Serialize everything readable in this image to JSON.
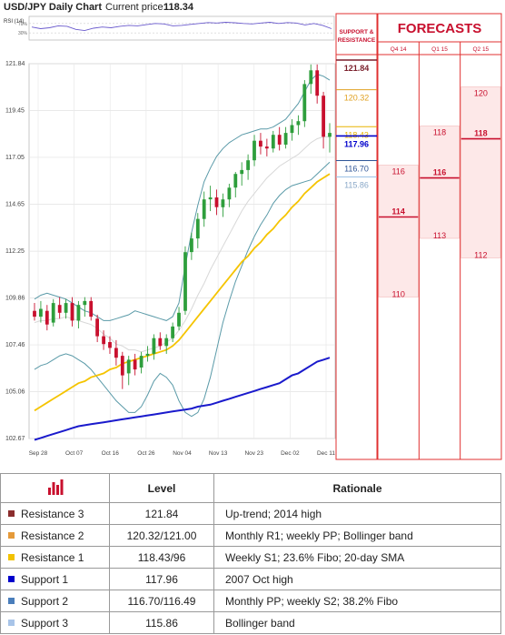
{
  "header": {
    "title": "USD/JPY Daily Chart",
    "price_label": "Current price:",
    "price_value": "118.34"
  },
  "chart_data": [
    {
      "type": "line",
      "title": "RSI (14)",
      "ticks": [
        "70%",
        "30%"
      ],
      "ylim": [
        0,
        100
      ],
      "series": [
        {
          "values": [
            55,
            48,
            52,
            60,
            58,
            45,
            40,
            50,
            55,
            52,
            58,
            62,
            60,
            65,
            70,
            68,
            60,
            62,
            66,
            70,
            74,
            72,
            75,
            73,
            70,
            68,
            72,
            75,
            70,
            74,
            72,
            64,
            70,
            62,
            48
          ]
        }
      ],
      "color": "#6a5acd"
    },
    {
      "type": "candlestick",
      "title": "USD/JPY Daily Chart",
      "ylim": [
        102.67,
        121.84
      ],
      "yticks": [
        "121.84",
        "119.45",
        "117.05",
        "114.65",
        "112.25",
        "109.86",
        "107.46",
        "105.06",
        "102.67"
      ],
      "xticks": [
        "Sep 28",
        "Oct 07",
        "Oct 16",
        "Oct 26",
        "Nov 04",
        "Nov 13",
        "Nov 23",
        "Dec 02",
        "Dec 11"
      ],
      "candles": [
        {
          "o": 109.2,
          "h": 109.6,
          "l": 108.7,
          "c": 108.9
        },
        {
          "o": 108.9,
          "h": 109.7,
          "l": 108.6,
          "c": 109.3
        },
        {
          "o": 109.2,
          "h": 109.5,
          "l": 108.2,
          "c": 108.5
        },
        {
          "o": 108.6,
          "h": 109.8,
          "l": 108.4,
          "c": 109.6
        },
        {
          "o": 109.5,
          "h": 109.9,
          "l": 108.8,
          "c": 109.1
        },
        {
          "o": 109.1,
          "h": 109.8,
          "l": 108.8,
          "c": 109.6
        },
        {
          "o": 109.6,
          "h": 109.9,
          "l": 108.4,
          "c": 108.7
        },
        {
          "o": 108.7,
          "h": 109.7,
          "l": 108.3,
          "c": 109.5
        },
        {
          "o": 109.5,
          "h": 109.9,
          "l": 108.9,
          "c": 109.7
        },
        {
          "o": 109.7,
          "h": 109.9,
          "l": 108.7,
          "c": 108.9
        },
        {
          "o": 108.8,
          "h": 109.0,
          "l": 107.6,
          "c": 107.9
        },
        {
          "o": 107.9,
          "h": 108.2,
          "l": 107.2,
          "c": 107.5
        },
        {
          "o": 107.6,
          "h": 107.9,
          "l": 107.0,
          "c": 107.3
        },
        {
          "o": 107.3,
          "h": 107.7,
          "l": 106.4,
          "c": 106.8
        },
        {
          "o": 106.9,
          "h": 107.1,
          "l": 105.2,
          "c": 105.9
        },
        {
          "o": 106.0,
          "h": 106.9,
          "l": 105.4,
          "c": 106.7
        },
        {
          "o": 106.7,
          "h": 107.0,
          "l": 105.9,
          "c": 106.2
        },
        {
          "o": 106.3,
          "h": 107.1,
          "l": 106.0,
          "c": 106.9
        },
        {
          "o": 106.9,
          "h": 107.4,
          "l": 106.6,
          "c": 107.0
        },
        {
          "o": 107.0,
          "h": 108.0,
          "l": 106.7,
          "c": 107.8
        },
        {
          "o": 107.8,
          "h": 108.1,
          "l": 107.2,
          "c": 107.4
        },
        {
          "o": 107.4,
          "h": 108.0,
          "l": 107.0,
          "c": 107.8
        },
        {
          "o": 107.8,
          "h": 108.6,
          "l": 107.6,
          "c": 108.4
        },
        {
          "o": 108.4,
          "h": 109.4,
          "l": 108.2,
          "c": 109.1
        },
        {
          "o": 109.2,
          "h": 112.5,
          "l": 109.0,
          "c": 112.2
        },
        {
          "o": 112.2,
          "h": 113.2,
          "l": 111.8,
          "c": 112.9
        },
        {
          "o": 112.9,
          "h": 114.2,
          "l": 112.4,
          "c": 113.9
        },
        {
          "o": 113.9,
          "h": 115.3,
          "l": 113.5,
          "c": 114.9
        },
        {
          "o": 114.9,
          "h": 115.6,
          "l": 114.3,
          "c": 115.0
        },
        {
          "o": 115.0,
          "h": 115.4,
          "l": 114.1,
          "c": 114.5
        },
        {
          "o": 114.5,
          "h": 115.2,
          "l": 114.0,
          "c": 114.9
        },
        {
          "o": 114.9,
          "h": 115.7,
          "l": 114.5,
          "c": 115.5
        },
        {
          "o": 115.5,
          "h": 116.3,
          "l": 115.0,
          "c": 116.2
        },
        {
          "o": 116.2,
          "h": 116.8,
          "l": 115.6,
          "c": 116.4
        },
        {
          "o": 116.4,
          "h": 117.2,
          "l": 115.9,
          "c": 116.9
        },
        {
          "o": 116.9,
          "h": 118.2,
          "l": 116.6,
          "c": 117.9
        },
        {
          "o": 117.9,
          "h": 118.3,
          "l": 117.2,
          "c": 117.6
        },
        {
          "o": 117.6,
          "h": 118.0,
          "l": 117.1,
          "c": 117.5
        },
        {
          "o": 117.5,
          "h": 118.4,
          "l": 117.3,
          "c": 118.2
        },
        {
          "o": 118.2,
          "h": 118.6,
          "l": 117.4,
          "c": 117.7
        },
        {
          "o": 117.7,
          "h": 118.6,
          "l": 117.5,
          "c": 118.3
        },
        {
          "o": 118.3,
          "h": 119.0,
          "l": 117.9,
          "c": 118.7
        },
        {
          "o": 118.7,
          "h": 119.2,
          "l": 118.2,
          "c": 118.9
        },
        {
          "o": 118.9,
          "h": 121.0,
          "l": 118.6,
          "c": 120.8
        },
        {
          "o": 120.8,
          "h": 121.8,
          "l": 120.3,
          "c": 121.5
        },
        {
          "o": 121.5,
          "h": 121.8,
          "l": 119.8,
          "c": 120.2
        },
        {
          "o": 120.2,
          "h": 120.4,
          "l": 117.5,
          "c": 118.1
        },
        {
          "o": 118.1,
          "h": 118.8,
          "l": 117.3,
          "c": 118.3
        }
      ],
      "sma20": [
        108.6,
        108.7,
        108.7,
        108.8,
        108.8,
        108.9,
        108.8,
        108.7,
        108.6,
        108.5,
        108.3,
        108.0,
        107.8,
        107.5,
        107.4,
        107.2,
        107.2,
        107.1,
        107.2,
        107.3,
        107.4,
        107.6,
        107.8,
        108.2,
        108.7,
        109.3,
        110.0,
        110.6,
        111.3,
        111.9,
        112.5,
        113.1,
        113.7,
        114.3,
        114.8,
        115.2,
        115.6,
        116.0,
        116.3,
        116.6,
        116.8,
        117.0,
        117.2,
        117.5,
        117.8,
        118.0,
        118.1,
        118.1
      ],
      "bb_upper": [
        109.8,
        110.0,
        110.1,
        110.0,
        109.9,
        109.8,
        109.6,
        109.4,
        109.2,
        109.1,
        108.9,
        108.7,
        108.7,
        108.8,
        108.9,
        109.0,
        109.2,
        109.1,
        109.0,
        108.9,
        108.8,
        108.7,
        108.9,
        109.6,
        111.5,
        113.2,
        114.6,
        115.8,
        116.5,
        117.1,
        117.5,
        117.8,
        118.0,
        118.2,
        118.3,
        118.4,
        118.5,
        118.5,
        118.6,
        118.8,
        119.0,
        119.4,
        119.8,
        120.4,
        121.0,
        121.3,
        121.2,
        121.0
      ],
      "bb_lower": [
        106.2,
        106.4,
        106.5,
        106.7,
        106.9,
        107.0,
        106.9,
        106.7,
        106.5,
        106.2,
        105.8,
        105.4,
        105.0,
        104.6,
        104.3,
        104.0,
        104.0,
        104.3,
        104.9,
        105.6,
        106.0,
        105.8,
        105.4,
        104.6,
        104.0,
        103.8,
        104.0,
        104.7,
        105.8,
        107.2,
        108.6,
        109.7,
        110.7,
        111.5,
        112.3,
        113.0,
        113.6,
        114.1,
        114.7,
        115.1,
        115.4,
        115.6,
        115.7,
        115.8,
        115.9,
        116.2,
        116.5,
        116.8
      ],
      "sma50": [
        104.1,
        104.3,
        104.5,
        104.7,
        104.9,
        105.1,
        105.3,
        105.5,
        105.6,
        105.8,
        105.9,
        106.0,
        106.2,
        106.3,
        106.5,
        106.6,
        106.7,
        106.8,
        106.9,
        107.0,
        107.1,
        107.2,
        107.4,
        107.7,
        108.1,
        108.5,
        108.9,
        109.3,
        109.7,
        110.1,
        110.5,
        110.9,
        111.3,
        111.7,
        112.0,
        112.4,
        112.7,
        113.1,
        113.4,
        113.8,
        114.1,
        114.5,
        114.8,
        115.2,
        115.5,
        115.8,
        116.0,
        116.2
      ],
      "sma200": [
        102.6,
        102.7,
        102.8,
        102.9,
        103.0,
        103.1,
        103.2,
        103.3,
        103.35,
        103.4,
        103.45,
        103.5,
        103.55,
        103.6,
        103.65,
        103.7,
        103.75,
        103.8,
        103.85,
        103.9,
        103.95,
        104.0,
        104.05,
        104.1,
        104.15,
        104.2,
        104.3,
        104.35,
        104.4,
        104.5,
        104.6,
        104.7,
        104.8,
        104.9,
        105.0,
        105.1,
        105.2,
        105.3,
        105.4,
        105.5,
        105.7,
        105.9,
        106.0,
        106.2,
        106.4,
        106.6,
        106.7,
        106.8
      ]
    }
  ],
  "support_resistance": {
    "header_line1": "SUPPORT &",
    "header_line2": "RESISTANCE",
    "levels": [
      {
        "value": "121.84",
        "price": 121.84,
        "color": "#7a1f2b",
        "bold": true
      },
      {
        "value": "120.32",
        "price": 120.32,
        "color": "#e0a020",
        "bold": false
      },
      {
        "value": "118.43",
        "price": 118.43,
        "color": "#e8b400",
        "bold": false
      },
      {
        "value": "117.96",
        "price": 117.96,
        "color": "#0000cc",
        "bold": true
      },
      {
        "value": "116.70",
        "price": 116.7,
        "color": "#2f5597",
        "bold": false
      },
      {
        "value": "115.86",
        "price": 115.86,
        "color": "#9dc3e6",
        "bold": false
      }
    ]
  },
  "forecasts": {
    "title": "FORECASTS",
    "columns": [
      {
        "label": "Q4 14",
        "high": 116,
        "mid": 114,
        "low": 110
      },
      {
        "label": "Q1 15",
        "high": 118,
        "mid": 116,
        "low": 113
      },
      {
        "label": "Q2 15",
        "high": 120,
        "mid": 118,
        "low": 112
      }
    ]
  },
  "table": {
    "headers": [
      "Level",
      "Rationale"
    ],
    "rows": [
      {
        "name": "Resistance 3",
        "level": "121.84",
        "rationale": "Up-trend; 2014 high",
        "color": "#8b2d2d"
      },
      {
        "name": "Resistance 2",
        "level": "120.32/121.00",
        "rationale": "Monthly R1; weekly PP; Bollinger band",
        "color": "#e59a3a"
      },
      {
        "name": "Resistance 1",
        "level": "118.43/96",
        "rationale": "Weekly S1; 23.6% Fibo; 20-day SMA",
        "color": "#f2c200"
      },
      {
        "name": "Support 1",
        "level": "117.96",
        "rationale": "2007 Oct high",
        "color": "#0000cc"
      },
      {
        "name": "Support 2",
        "level": "116.70/116.49",
        "rationale": "Monthly PP; weekly S2; 38.2% Fibo",
        "color": "#4a7ebb"
      },
      {
        "name": "Support 3",
        "level": "115.86",
        "rationale": "Bollinger band",
        "color": "#a8c4e8"
      }
    ]
  },
  "colors": {
    "accent": "#c8102e",
    "up": "#2e9e3c",
    "down": "#c8102e"
  }
}
